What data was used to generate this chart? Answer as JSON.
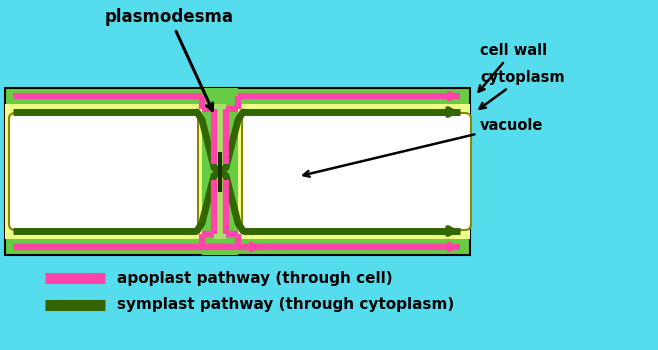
{
  "bg_color": "#55ddee",
  "cell_wall_color": "#66cc44",
  "cytoplasm_color": "#eeff88",
  "vacuole_color": "#ffffff",
  "apoplast_color": "#ff44aa",
  "symplast_color": "#336600",
  "label_plasmodesma": "plasmodesma",
  "label_cell_wall": "cell wall",
  "label_cytoplasm": "cytoplasm",
  "label_vacuole": "vacuole",
  "label_apoplast": "apoplast pathway (through cell)",
  "label_symplast": "symplast pathway (through cytoplasm)",
  "fig_width": 6.58,
  "fig_height": 3.5
}
